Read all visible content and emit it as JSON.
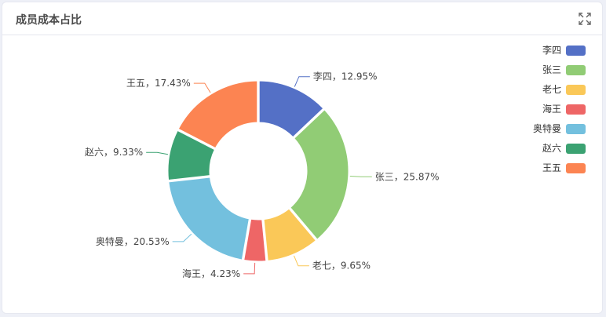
{
  "header": {
    "title": "成员成本占比",
    "expand_icon": "expand-icon"
  },
  "chart_data": {
    "type": "pie",
    "variant": "donut",
    "title": "成员成本占比",
    "legend_position": "right",
    "label_separator": "，",
    "slices": [
      {
        "name": "李四",
        "value": 12.95,
        "percent_label": "12.95%",
        "color": "#5470c6"
      },
      {
        "name": "张三",
        "value": 25.87,
        "percent_label": "25.87%",
        "color": "#91cc75"
      },
      {
        "name": "老七",
        "value": 9.65,
        "percent_label": "9.65%",
        "color": "#fac858"
      },
      {
        "name": "海王",
        "value": 4.23,
        "percent_label": "4.23%",
        "color": "#ee6666"
      },
      {
        "name": "奥特曼",
        "value": 20.53,
        "percent_label": "20.53%",
        "color": "#73c0de"
      },
      {
        "name": "赵六",
        "value": 9.33,
        "percent_label": "9.33%",
        "color": "#3ba272"
      },
      {
        "name": "王五",
        "value": 17.43,
        "percent_label": "17.43%",
        "color": "#fc8452"
      }
    ]
  }
}
